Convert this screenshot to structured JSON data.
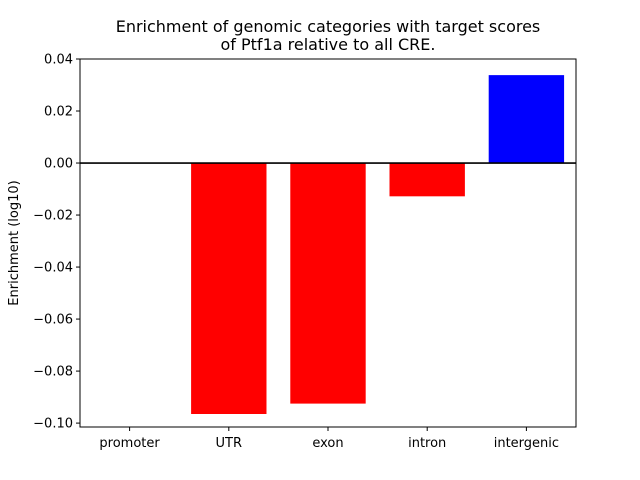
{
  "chart_data": {
    "type": "bar",
    "title_lines": [
      "Enrichment of genomic categories with target scores",
      "of Ptf1a relative to all CRE."
    ],
    "xlabel": "",
    "ylabel": "Enrichment (log10)",
    "categories": [
      "promoter",
      "UTR",
      "exon",
      "intron",
      "intergenic"
    ],
    "values": [
      0.0,
      -0.0965,
      -0.0925,
      -0.0128,
      0.0338
    ],
    "bar_colors": [
      "#ff0000",
      "#ff0000",
      "#ff0000",
      "#ff0000",
      "#0000ff"
    ],
    "ylim": [
      -0.1015,
      0.04
    ],
    "yticks": [
      -0.1,
      -0.08,
      -0.06,
      -0.04,
      -0.02,
      0.0,
      0.02,
      0.04
    ],
    "ytick_labels": [
      "−0.10",
      "−0.08",
      "−0.06",
      "−0.04",
      "−0.02",
      "0.00",
      "0.02",
      "0.04"
    ],
    "zero_line": true,
    "grid": false,
    "legend": "none"
  }
}
